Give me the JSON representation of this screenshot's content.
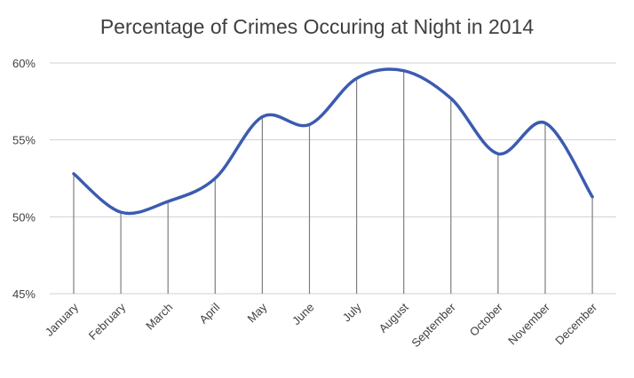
{
  "chart_data": {
    "type": "line",
    "title": "Percentage of Crimes Occuring at Night in 2014",
    "categories": [
      "January",
      "February",
      "March",
      "April",
      "May",
      "June",
      "July",
      "August",
      "September",
      "October",
      "November",
      "December"
    ],
    "series": [
      {
        "values": [
          52.8,
          50.3,
          51.0,
          52.5,
          56.5,
          56.0,
          59.0,
          59.5,
          57.7,
          54.1,
          56.1,
          51.3
        ]
      }
    ],
    "ylim": [
      45,
      60
    ],
    "yticks": [
      45,
      50,
      55,
      60
    ],
    "ytick_labels": [
      "45%",
      "50%",
      "55%",
      "60%"
    ],
    "smooth": true,
    "drop_lines": true,
    "grid": true,
    "legend": "none",
    "colors": {
      "series": "#3c5bb0",
      "drop_lines": "#7f7f7f",
      "grid": "#d0d0d0",
      "text": "#404040"
    }
  }
}
